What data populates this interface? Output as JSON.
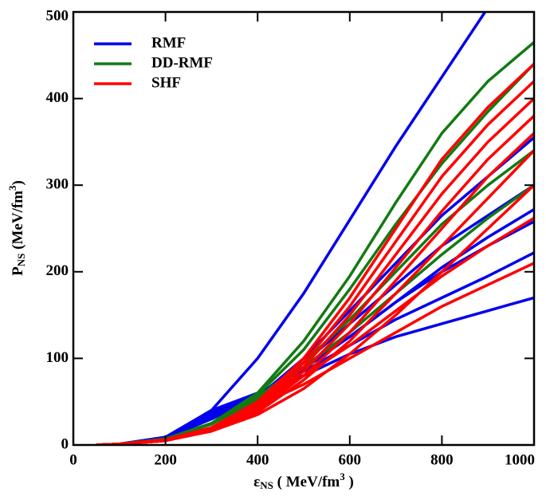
{
  "chart_data": {
    "type": "line",
    "xlabel": {
      "main": "ε",
      "sub": "NS",
      "rest": " ( MeV/fm",
      "sup": "3",
      "end": " )"
    },
    "ylabel": {
      "main": "P",
      "sub": "NS",
      "rest": " (MeV/fm",
      "sup": "3",
      "end": ")"
    },
    "x": [
      50,
      100,
      200,
      300,
      400,
      500,
      600,
      700,
      800,
      900,
      1000
    ],
    "xlim": [
      0,
      1000
    ],
    "xticks": [
      0,
      200,
      400,
      600,
      800,
      1000
    ],
    "ylim": [
      0,
      500
    ],
    "yticks": [
      0,
      100,
      200,
      300,
      400,
      500
    ],
    "legend": "upper left",
    "series": [
      {
        "name": "RMF",
        "color": "#0000ee",
        "values": [
          0,
          1,
          9,
          40,
          100,
          175,
          260,
          345,
          425,
          505,
          585
        ]
      },
      {
        "color": "#0000ee",
        "values": [
          0,
          1,
          9,
          40,
          60,
          80,
          105,
          125,
          140,
          155,
          170
        ]
      },
      {
        "color": "#0000ee",
        "values": [
          0,
          1,
          9,
          38,
          60,
          85,
          115,
          145,
          170,
          195,
          222
        ]
      },
      {
        "color": "#0000ee",
        "values": [
          0,
          1,
          8,
          35,
          58,
          90,
          125,
          165,
          200,
          230,
          258
        ]
      },
      {
        "color": "#0000ee",
        "values": [
          0,
          1,
          8,
          33,
          55,
          95,
          140,
          185,
          230,
          265,
          300
        ]
      },
      {
        "color": "#0000ee",
        "values": [
          0,
          1,
          8,
          30,
          55,
          100,
          155,
          210,
          265,
          310,
          355
        ]
      },
      {
        "color": "#0000ee",
        "values": [
          0,
          1,
          8,
          32,
          55,
          88,
          125,
          165,
          205,
          240,
          272
        ]
      },
      {
        "name": "DD-RMF",
        "color": "#127a12",
        "values": [
          0,
          1,
          7,
          25,
          60,
          120,
          195,
          280,
          360,
          420,
          465
        ]
      },
      {
        "color": "#127a12",
        "values": [
          0,
          1,
          7,
          25,
          58,
          110,
          180,
          255,
          325,
          385,
          440
        ]
      },
      {
        "color": "#127a12",
        "values": [
          0,
          1,
          7,
          25,
          55,
          95,
          145,
          200,
          255,
          300,
          340
        ]
      },
      {
        "color": "#127a12",
        "values": [
          0,
          1,
          7,
          24,
          52,
          90,
          130,
          175,
          220,
          262,
          300
        ]
      },
      {
        "name": "SHF",
        "color": "#ff0000",
        "values": [
          0,
          1,
          6,
          20,
          50,
          100,
          170,
          250,
          330,
          390,
          440
        ]
      },
      {
        "color": "#ff0000",
        "values": [
          0,
          1,
          6,
          20,
          48,
          95,
          160,
          235,
          310,
          370,
          420
        ]
      },
      {
        "color": "#ff0000",
        "values": [
          0,
          1,
          6,
          19,
          45,
          90,
          150,
          220,
          290,
          350,
          400
        ]
      },
      {
        "color": "#ff0000",
        "values": [
          0,
          1,
          5,
          18,
          43,
          85,
          140,
          205,
          270,
          330,
          380
        ]
      },
      {
        "color": "#ff0000",
        "values": [
          0,
          1,
          5,
          17,
          40,
          80,
          130,
          190,
          250,
          310,
          360
        ]
      },
      {
        "color": "#ff0000",
        "values": [
          0,
          1,
          5,
          16,
          38,
          75,
          120,
          175,
          230,
          285,
          340
        ]
      },
      {
        "color": "#ff0000",
        "values": [
          0,
          1,
          5,
          18,
          45,
          80,
          115,
          155,
          195,
          230,
          262
        ]
      },
      {
        "color": "#ff0000",
        "values": [
          0,
          1,
          5,
          20,
          45,
          70,
          100,
          130,
          160,
          185,
          210
        ]
      },
      {
        "color": "#ff0000",
        "values": [
          0,
          1,
          5,
          16,
          35,
          65,
          105,
          150,
          200,
          250,
          300
        ]
      }
    ]
  }
}
